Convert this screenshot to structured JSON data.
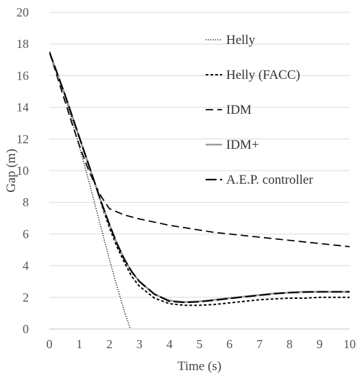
{
  "chart_data": {
    "type": "line",
    "title": "",
    "xlabel": "Time (s)",
    "ylabel": "Gap (m)",
    "xlim": [
      0,
      10
    ],
    "ylim": [
      0,
      20
    ],
    "x_ticks": [
      "0",
      "1",
      "2",
      "3",
      "4",
      "5",
      "6",
      "7",
      "8",
      "9",
      "10"
    ],
    "y_ticks": [
      "0",
      "2",
      "4",
      "6",
      "8",
      "10",
      "12",
      "14",
      "16",
      "18",
      "20"
    ],
    "grid": "horizontal",
    "legend_position": "top-right",
    "series": [
      {
        "name": "Helly",
        "color": "#000000",
        "dash": "dotted",
        "x": [
          0,
          0.25,
          0.5,
          0.75,
          1.0,
          1.25,
          1.5,
          1.75,
          2.0,
          2.25,
          2.5,
          2.7
        ],
        "y": [
          17.5,
          16.3,
          14.8,
          13.2,
          11.5,
          9.8,
          8.0,
          6.2,
          4.4,
          2.7,
          1.1,
          0.0
        ]
      },
      {
        "name": "Helly (FACC)",
        "color": "#000000",
        "dash": "short-dash",
        "x": [
          0,
          0.25,
          0.5,
          0.75,
          1.0,
          1.25,
          1.5,
          1.75,
          2.0,
          2.25,
          2.5,
          2.75,
          3.0,
          3.5,
          4.0,
          4.5,
          5.0,
          5.5,
          6.0,
          6.5,
          7.0,
          7.5,
          8.0,
          8.5,
          9.0,
          9.5,
          10.0
        ],
        "y": [
          17.5,
          16.2,
          14.9,
          13.5,
          12.1,
          10.7,
          9.3,
          7.8,
          6.4,
          5.2,
          4.2,
          3.3,
          2.7,
          1.95,
          1.6,
          1.5,
          1.5,
          1.55,
          1.65,
          1.75,
          1.85,
          1.9,
          1.95,
          1.95,
          2.0,
          2.0,
          2.0
        ]
      },
      {
        "name": "IDM",
        "color": "#000000",
        "dash": "long-dash",
        "x": [
          0,
          0.25,
          0.5,
          0.75,
          1.0,
          1.25,
          1.5,
          1.75,
          2.0,
          2.5,
          3.0,
          3.5,
          4.0,
          4.5,
          5.0,
          5.5,
          6.0,
          6.5,
          7.0,
          7.5,
          8.0,
          8.5,
          9.0,
          9.5,
          10.0
        ],
        "y": [
          17.5,
          16.0,
          14.5,
          13.0,
          11.6,
          10.3,
          9.2,
          8.3,
          7.6,
          7.2,
          6.95,
          6.75,
          6.55,
          6.4,
          6.25,
          6.1,
          6.0,
          5.9,
          5.8,
          5.7,
          5.6,
          5.5,
          5.4,
          5.3,
          5.2
        ]
      },
      {
        "name": "IDM+",
        "color": "#9a9a9a",
        "dash": "solid",
        "x": [
          0,
          0.25,
          0.5,
          0.75,
          1.0,
          1.25,
          1.5,
          1.75,
          2.0,
          2.25,
          2.5,
          2.75,
          3.0,
          3.5,
          4.0,
          4.5,
          5.0,
          5.5,
          6.0,
          6.5,
          7.0,
          7.5,
          8.0,
          8.5,
          9.0,
          9.5,
          10.0
        ],
        "y": [
          17.5,
          16.2,
          14.9,
          13.5,
          12.1,
          10.7,
          9.3,
          7.9,
          6.6,
          5.4,
          4.4,
          3.6,
          3.0,
          2.2,
          1.8,
          1.7,
          1.75,
          1.85,
          1.95,
          2.05,
          2.15,
          2.25,
          2.3,
          2.35,
          2.35,
          2.35,
          2.35
        ]
      },
      {
        "name": "A.E.P. controller",
        "color": "#000000",
        "dash": "dash",
        "x": [
          0,
          0.25,
          0.5,
          0.75,
          1.0,
          1.25,
          1.5,
          1.75,
          2.0,
          2.25,
          2.5,
          2.75,
          3.0,
          3.5,
          4.0,
          4.5,
          5.0,
          5.5,
          6.0,
          6.5,
          7.0,
          7.5,
          8.0,
          8.5,
          9.0,
          9.5,
          10.0
        ],
        "y": [
          17.5,
          16.2,
          14.9,
          13.5,
          12.1,
          10.7,
          9.3,
          7.9,
          6.6,
          5.4,
          4.4,
          3.6,
          3.0,
          2.2,
          1.75,
          1.68,
          1.72,
          1.82,
          1.93,
          2.03,
          2.13,
          2.23,
          2.3,
          2.33,
          2.35,
          2.35,
          2.35
        ]
      }
    ]
  }
}
